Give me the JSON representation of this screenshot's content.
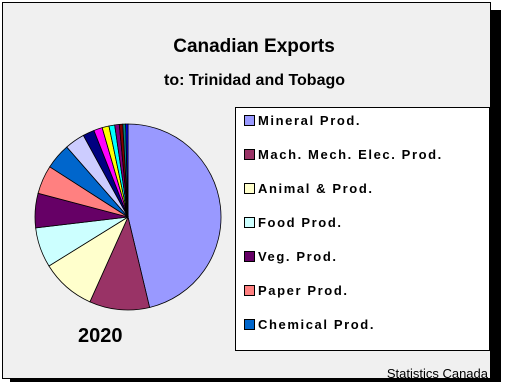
{
  "chart_data": {
    "type": "pie",
    "title": "Canadian Exports",
    "subtitle": "to: Trinidad and Tobago",
    "year": "2020",
    "source": "Statistics Canada",
    "slices": [
      {
        "label": "Mineral Prod.",
        "value": 46.5,
        "color": "#9999ff"
      },
      {
        "label": "Mach. Mech. Elec. Prod.",
        "value": 10.5,
        "color": "#993366"
      },
      {
        "label": "Animal & Prod.",
        "value": 9.5,
        "color": "#ffffcc"
      },
      {
        "label": "Food Prod.",
        "value": 7.0,
        "color": "#ccffff"
      },
      {
        "label": "Veg. Prod.",
        "value": 6.0,
        "color": "#660066"
      },
      {
        "label": "Paper Prod.",
        "value": 5.0,
        "color": "#ff8080"
      },
      {
        "label": "Chemical Prod.",
        "value": 4.5,
        "color": "#0066cc"
      },
      {
        "label": "",
        "value": 3.5,
        "color": "#ccccff"
      },
      {
        "label": "",
        "value": 2.0,
        "color": "#000080"
      },
      {
        "label": "",
        "value": 1.5,
        "color": "#ff00ff"
      },
      {
        "label": "",
        "value": 1.2,
        "color": "#ffff00"
      },
      {
        "label": "",
        "value": 1.0,
        "color": "#00ffff"
      },
      {
        "label": "",
        "value": 0.8,
        "color": "#800080"
      },
      {
        "label": "",
        "value": 0.6,
        "color": "#800000"
      },
      {
        "label": "",
        "value": 0.5,
        "color": "#008080"
      },
      {
        "label": "",
        "value": 0.4,
        "color": "#0000ff"
      }
    ],
    "legend_position": "right"
  },
  "legend": {
    "items": [
      {
        "label": "Mineral Prod.",
        "color": "#9999ff"
      },
      {
        "label": "Mach. Mech. Elec. Prod.",
        "color": "#993366"
      },
      {
        "label": "Animal & Prod.",
        "color": "#ffffcc"
      },
      {
        "label": "Food Prod.",
        "color": "#ccffff"
      },
      {
        "label": "Veg. Prod.",
        "color": "#660066"
      },
      {
        "label": "Paper Prod.",
        "color": "#ff8080"
      },
      {
        "label": "Chemical Prod.",
        "color": "#0066cc"
      }
    ]
  }
}
